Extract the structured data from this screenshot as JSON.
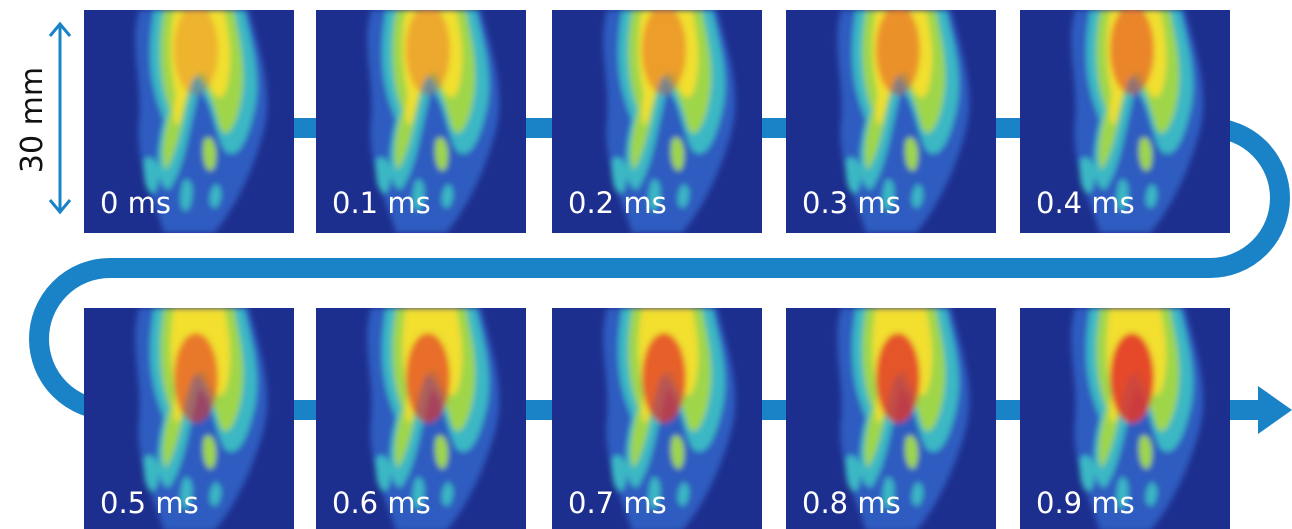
{
  "scale_label": "30 mm",
  "frames": [
    "0 ms",
    "0.1 ms",
    "0.2 ms",
    "0.3 ms",
    "0.4 ms",
    "0.5 ms",
    "0.6 ms",
    "0.7 ms",
    "0.8 ms",
    "0.9 ms"
  ]
}
